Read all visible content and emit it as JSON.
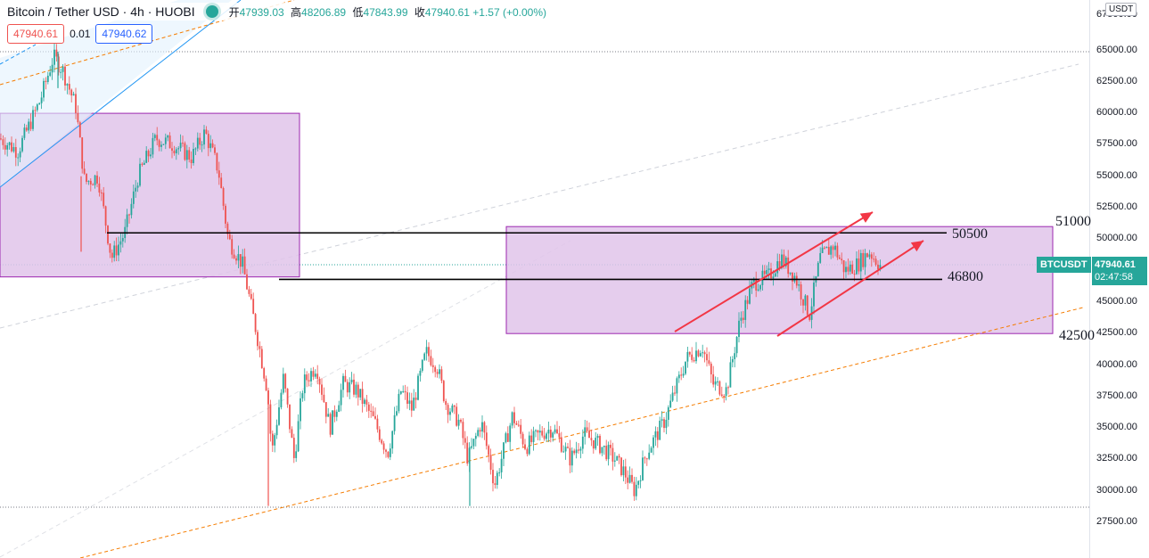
{
  "header": {
    "title": "Bitcoin / Tether USD · 4h · HUOBI",
    "ohlc": {
      "open_label": "开",
      "open": "47939.03",
      "high_label": "高",
      "high": "48206.89",
      "low_label": "低",
      "low": "47843.99",
      "close_label": "收",
      "close": "47940.61",
      "change": "+1.57 (+0.00%)"
    }
  },
  "trade": {
    "sell_price": "47940.61",
    "spread": "0.01",
    "buy_price": "47940.62"
  },
  "axis": {
    "currency": "USDT",
    "top_label": "67500.00",
    "ticks": [
      "65000.00",
      "62500.00",
      "60000.00",
      "57500.00",
      "55000.00",
      "52500.00",
      "50000.00",
      "47500.00",
      "45000.00",
      "42500.00",
      "40000.00",
      "37500.00",
      "35000.00",
      "32500.00",
      "30000.00",
      "27500.00"
    ]
  },
  "last_price": {
    "symbol": "BTCUSDT",
    "price": "47940.61",
    "countdown": "02:47:58"
  },
  "levels": [
    "51000",
    "50500",
    "46800",
    "42500"
  ],
  "colors": {
    "up": "#26a69a",
    "down": "#ef5350",
    "zone_fill": "#e1c4ea",
    "zone_border": "#9c27b0",
    "trend_orange": "#f57c00",
    "arrow_red": "#f23645",
    "channel_blue": "#2196f3"
  },
  "chart_data": {
    "type": "candlestick",
    "symbol": "Bitcoin / Tether USD",
    "interval": "4h",
    "exchange": "HUOBI",
    "ylim": [
      26000,
      69000
    ],
    "anchors": [
      [
        0,
        58000
      ],
      [
        20,
        57000
      ],
      [
        45,
        61000
      ],
      [
        60,
        64500
      ],
      [
        70,
        63500
      ],
      [
        85,
        60500
      ],
      [
        95,
        54500
      ],
      [
        110,
        55000
      ],
      [
        125,
        48500
      ],
      [
        140,
        50500
      ],
      [
        155,
        55000
      ],
      [
        175,
        58000
      ],
      [
        195,
        57500
      ],
      [
        215,
        56500
      ],
      [
        230,
        58500
      ],
      [
        245,
        55500
      ],
      [
        256,
        50000
      ],
      [
        272,
        48000
      ],
      [
        288,
        42500
      ],
      [
        300,
        38000
      ],
      [
        305,
        33000
      ],
      [
        318,
        39000
      ],
      [
        330,
        32500
      ],
      [
        340,
        38500
      ],
      [
        355,
        40000
      ],
      [
        370,
        35000
      ],
      [
        385,
        38500
      ],
      [
        400,
        38000
      ],
      [
        420,
        35500
      ],
      [
        435,
        33000
      ],
      [
        450,
        38000
      ],
      [
        462,
        36500
      ],
      [
        478,
        41000
      ],
      [
        490,
        40000
      ],
      [
        500,
        37000
      ],
      [
        515,
        35500
      ],
      [
        525,
        32500
      ],
      [
        540,
        35500
      ],
      [
        555,
        30500
      ],
      [
        575,
        36000
      ],
      [
        590,
        33500
      ],
      [
        605,
        34500
      ],
      [
        620,
        35000
      ],
      [
        640,
        32500
      ],
      [
        655,
        34500
      ],
      [
        675,
        33500
      ],
      [
        690,
        32500
      ],
      [
        700,
        31500
      ],
      [
        712,
        30000
      ],
      [
        725,
        33000
      ],
      [
        745,
        35500
      ],
      [
        755,
        37500
      ],
      [
        770,
        40500
      ],
      [
        788,
        41500
      ],
      [
        800,
        38500
      ],
      [
        815,
        38000
      ],
      [
        830,
        43500
      ],
      [
        845,
        46500
      ],
      [
        862,
        47000
      ],
      [
        876,
        48500
      ],
      [
        892,
        47000
      ],
      [
        908,
        44000
      ],
      [
        920,
        48500
      ],
      [
        935,
        49500
      ],
      [
        948,
        47500
      ],
      [
        962,
        48000
      ],
      [
        975,
        49000
      ],
      [
        988,
        47900
      ]
    ],
    "zones": [
      {
        "x0": 0,
        "x1": 336,
        "y0": 47000,
        "y1": 60000
      },
      {
        "x0": 568,
        "x1": 1181,
        "y0": 42500,
        "y1": 51000
      }
    ],
    "horizontal_lines": [
      {
        "x0": 120,
        "x1": 1062,
        "y": 50500
      },
      {
        "x0": 313,
        "x1": 1057,
        "y": 46800
      }
    ]
  }
}
